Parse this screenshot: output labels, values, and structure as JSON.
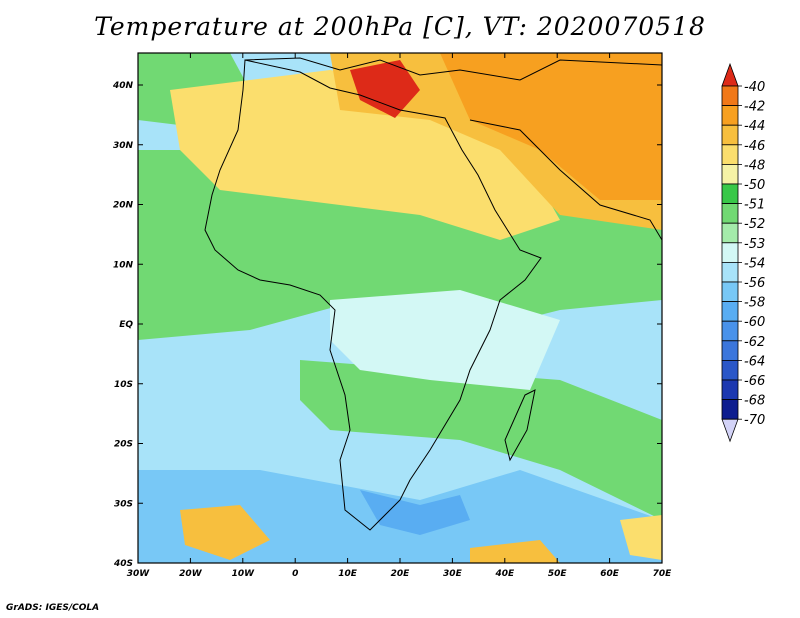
{
  "title": "Temperature at 200hPa [C], VT: 2020070518",
  "credit": "GrADS: IGES/COLA",
  "lon_ticks": [
    "30W",
    "20W",
    "10W",
    "0",
    "10E",
    "20E",
    "30E",
    "40E",
    "50E",
    "60E",
    "70E"
  ],
  "lat_ticks": [
    "40N",
    "30N",
    "20N",
    "10N",
    "EQ",
    "10S",
    "20S",
    "30S",
    "40S"
  ],
  "colorbar": {
    "levels": [
      "-40",
      "-42",
      "-44",
      "-46",
      "-48",
      "-50",
      "-51",
      "-52",
      "-53",
      "-54",
      "-56",
      "-58",
      "-60",
      "-62",
      "-64",
      "-66",
      "-68",
      "-70"
    ],
    "colors": [
      "#f07818",
      "#f7a020",
      "#f7bf3e",
      "#fbde6d",
      "#f5f2a6",
      "#38c848",
      "#71d973",
      "#a4ebaa",
      "#d3f8f5",
      "#a8e3f9",
      "#78c8f6",
      "#59adf2",
      "#4992ea",
      "#3b76dc",
      "#2a57c8",
      "#1c38b0",
      "#0d1d8f"
    ],
    "top_color": "#dd2a18",
    "bottom_color": "#d3d3f7"
  },
  "map_colors": {
    "ocean": "#a8e3f9",
    "tropics": "#71d973",
    "sahara": "#fbde6d",
    "mediterranean": "#f7bf3e",
    "arabia": "#f7a020",
    "hot_core": "#dd2a18",
    "congo": "#d3f8f5",
    "south": "#78c8f6",
    "south_deep": "#59adf2"
  }
}
